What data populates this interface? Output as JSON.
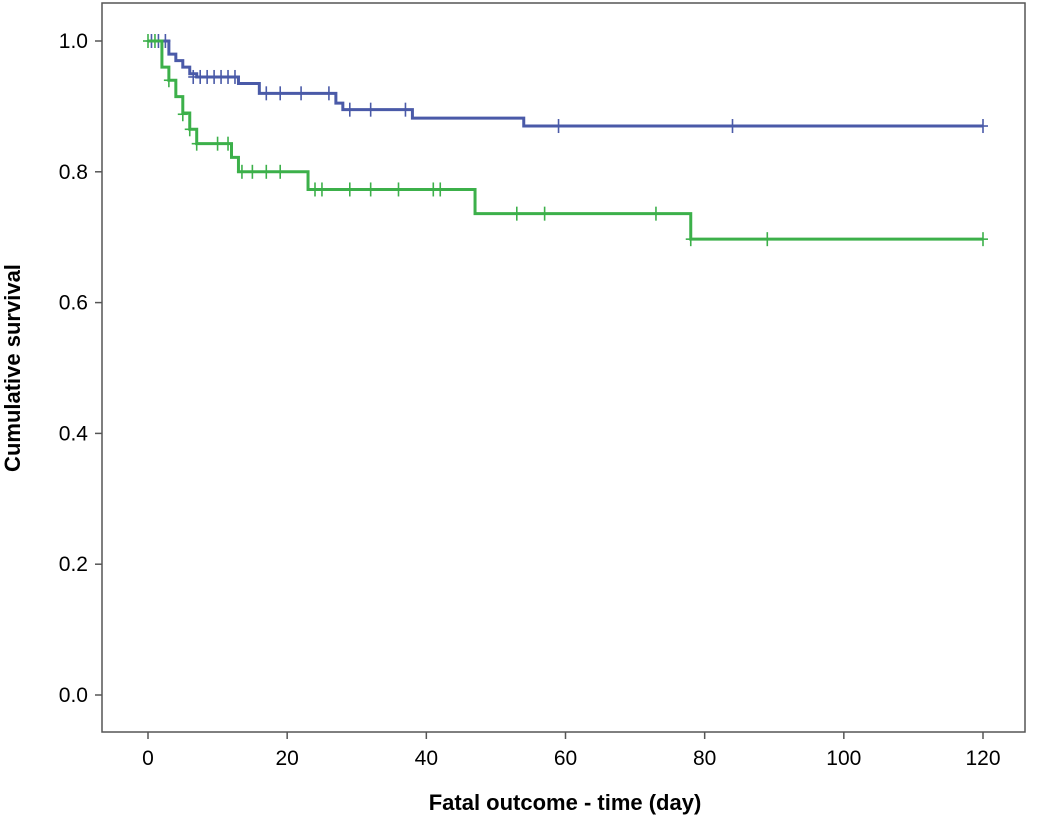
{
  "chart_data": {
    "type": "line",
    "subtype": "kaplan-meier-survival",
    "title": "",
    "xlabel": "Fatal outcome - time (day)",
    "ylabel": "Cumulative survival",
    "xlim": [
      0,
      120
    ],
    "ylim": [
      0.0,
      1.0
    ],
    "x_ticks": [
      0,
      20,
      40,
      60,
      80,
      100,
      120
    ],
    "x_tick_labels": [
      "0",
      "20",
      "40",
      "60",
      "80",
      "100",
      "120"
    ],
    "y_ticks": [
      0.0,
      0.2,
      0.4,
      0.6,
      0.8,
      1.0
    ],
    "y_tick_labels": [
      "0.0",
      "0.2",
      "0.4",
      "0.6",
      "0.8",
      "1.0"
    ],
    "grid": false,
    "legend": "none",
    "series": [
      {
        "color": "#4a5aa8",
        "steps": [
          [
            0,
            1.0
          ],
          [
            3,
            0.98
          ],
          [
            4,
            0.97
          ],
          [
            5,
            0.96
          ],
          [
            6,
            0.95
          ],
          [
            7,
            0.945
          ],
          [
            13,
            0.935
          ],
          [
            16,
            0.92
          ],
          [
            27,
            0.905
          ],
          [
            28,
            0.895
          ],
          [
            38,
            0.882
          ],
          [
            54,
            0.87
          ],
          [
            120,
            0.87
          ]
        ],
        "censored": [
          [
            0.5,
            1.0
          ],
          [
            1.5,
            1.0
          ],
          [
            2.5,
            1.0
          ],
          [
            6.5,
            0.945
          ],
          [
            7.5,
            0.945
          ],
          [
            8.5,
            0.945
          ],
          [
            9.5,
            0.945
          ],
          [
            10.5,
            0.945
          ],
          [
            11.5,
            0.945
          ],
          [
            12.5,
            0.945
          ],
          [
            17,
            0.92
          ],
          [
            19,
            0.92
          ],
          [
            22,
            0.92
          ],
          [
            26,
            0.92
          ],
          [
            29,
            0.895
          ],
          [
            32,
            0.895
          ],
          [
            37,
            0.895
          ],
          [
            59,
            0.87
          ],
          [
            84,
            0.87
          ],
          [
            120,
            0.87
          ]
        ]
      },
      {
        "color": "#3cb04a",
        "steps": [
          [
            0,
            1.0
          ],
          [
            2,
            0.96
          ],
          [
            3,
            0.94
          ],
          [
            4,
            0.915
          ],
          [
            5,
            0.89
          ],
          [
            6,
            0.865
          ],
          [
            7,
            0.843
          ],
          [
            12,
            0.822
          ],
          [
            13,
            0.8
          ],
          [
            23,
            0.773
          ],
          [
            47,
            0.736
          ],
          [
            78,
            0.697
          ],
          [
            120,
            0.697
          ]
        ],
        "censored": [
          [
            0,
            1.0
          ],
          [
            1,
            1.0
          ],
          [
            3,
            0.94
          ],
          [
            5,
            0.888
          ],
          [
            6,
            0.865
          ],
          [
            7,
            0.843
          ],
          [
            10,
            0.843
          ],
          [
            11.5,
            0.843
          ],
          [
            13.5,
            0.8
          ],
          [
            15,
            0.8
          ],
          [
            17,
            0.8
          ],
          [
            19,
            0.8
          ],
          [
            24,
            0.773
          ],
          [
            25,
            0.773
          ],
          [
            29,
            0.773
          ],
          [
            32,
            0.773
          ],
          [
            36,
            0.773
          ],
          [
            41,
            0.773
          ],
          [
            42,
            0.773
          ],
          [
            53,
            0.736
          ],
          [
            57,
            0.736
          ],
          [
            73,
            0.736
          ],
          [
            78,
            0.697
          ],
          [
            89,
            0.697
          ],
          [
            120,
            0.697
          ]
        ]
      }
    ]
  }
}
